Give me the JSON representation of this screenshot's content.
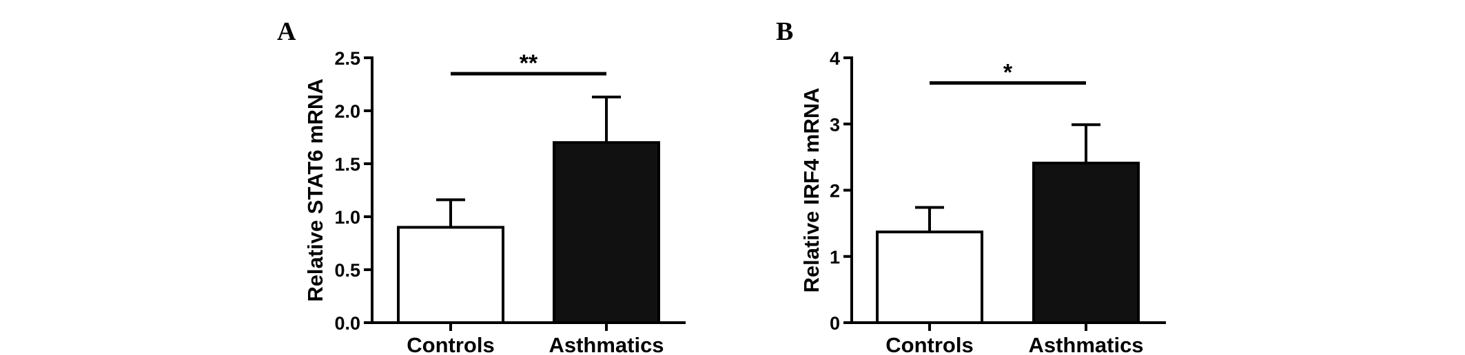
{
  "chart_data": [
    {
      "type": "bar",
      "panel_label": "A",
      "categories": [
        "Controls",
        "Asthmatics"
      ],
      "values": [
        0.9,
        1.7
      ],
      "errors": [
        0.26,
        0.43
      ],
      "bar_colors": [
        "#ffffff",
        "#111111"
      ],
      "ylabel": "Relative STAT6 mRNA",
      "xlabel": "",
      "ylim": [
        0,
        2.5
      ],
      "yticks": [
        0.0,
        0.5,
        1.0,
        1.5,
        2.0,
        2.5
      ],
      "ytick_labels": [
        "0.0",
        "0.5",
        "1.0",
        "1.5",
        "2.0",
        "2.5"
      ],
      "significance": {
        "label": "**",
        "y": 2.35
      },
      "grid": false
    },
    {
      "type": "bar",
      "panel_label": "B",
      "categories": [
        "Controls",
        "Asthmatics"
      ],
      "values": [
        1.37,
        2.41
      ],
      "errors": [
        0.37,
        0.58
      ],
      "bar_colors": [
        "#ffffff",
        "#111111"
      ],
      "ylabel": "Relative IRF4 mRNA",
      "xlabel": "",
      "ylim": [
        0,
        4
      ],
      "yticks": [
        0,
        1,
        2,
        3,
        4
      ],
      "ytick_labels": [
        "0",
        "1",
        "2",
        "3",
        "4"
      ],
      "significance": {
        "label": "*",
        "y": 3.62
      },
      "grid": false
    }
  ]
}
